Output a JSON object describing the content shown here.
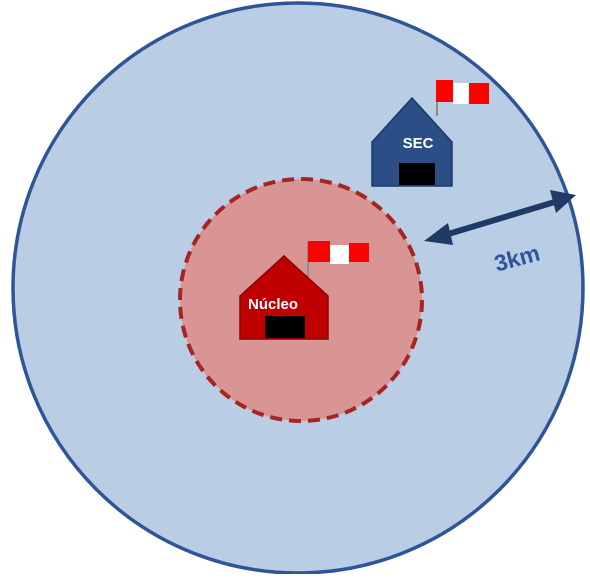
{
  "labels": {
    "nucleo": "Núcleo",
    "sec": "SEC",
    "distance": "3km"
  },
  "colors": {
    "outer_fill": "#B9CDE4",
    "outer_stroke": "#2E5597",
    "inner_fill": "#D99594",
    "inner_stroke": "#A52424",
    "nucleo_house": "#C00000",
    "sec_house": "#2A4E85",
    "arrow": "#1F3A66",
    "flag_red": "#FF0000",
    "flag_white": "#FFFFFF",
    "door": "#000000",
    "distance_text": "#2E5597"
  },
  "icons": {
    "nucleo": "house-icon",
    "sec": "house-icon",
    "flag": "peru-flag-icon",
    "arrow": "double-arrow-icon"
  }
}
